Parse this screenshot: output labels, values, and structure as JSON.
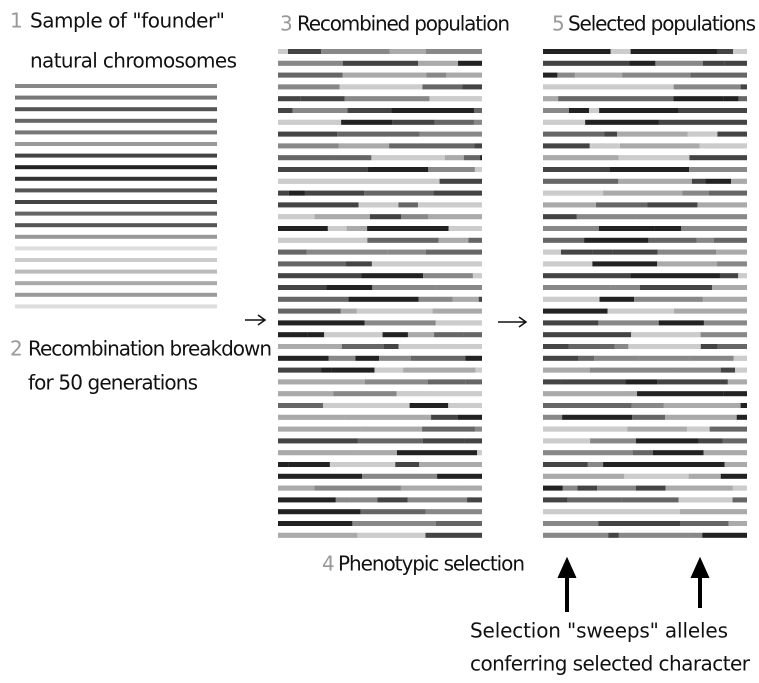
{
  "step1": {
    "number": "1",
    "lines": [
      "Sample of \"founder\"",
      "natural chromosomes"
    ]
  },
  "step2": {
    "number": "2",
    "lines": [
      "Recombination breakdown",
      "for 50 generations"
    ]
  },
  "step3": {
    "number": "3",
    "lines": [
      "Recombined population"
    ]
  },
  "step4": {
    "number": "4",
    "lines": [
      "Phenotypic selection"
    ]
  },
  "step5": {
    "number": "5",
    "lines": [
      "Selected populations"
    ]
  },
  "annotation": {
    "lines": [
      "Selection \"sweeps\" alleles",
      "conferring selected character"
    ]
  }
}
